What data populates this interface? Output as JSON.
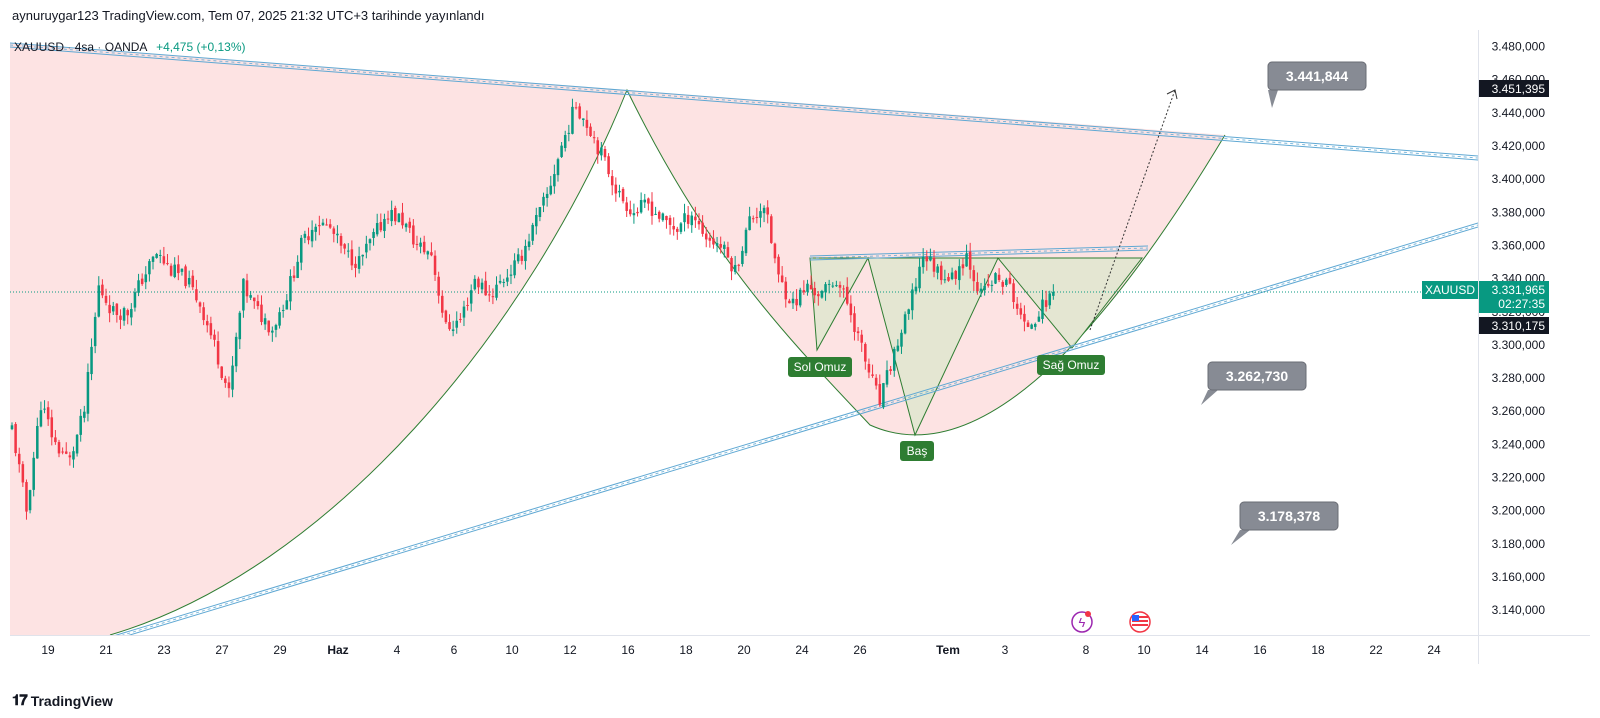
{
  "header": {
    "published": "aynuruygar123 TradingView.com, Tem 07, 2025 21:32 UTC+3 tarihinde yayınlandı"
  },
  "legend": {
    "symbol": "XAUUSD",
    "interval": "4sa",
    "broker": "OANDA",
    "change": "+4,475 (+0,13%)"
  },
  "footer": {
    "brand": "TradingView"
  },
  "colors": {
    "up": "#089981",
    "down": "#f23645",
    "trend": "#5fa8d3",
    "pattern": "#2e7d32",
    "cupFill": "#fde3e3",
    "hsFill": "#dfe6cf",
    "callout": "#878b94"
  },
  "chart_data": {
    "type": "candlestick",
    "symbol": "XAUUSD",
    "ylim": [
      3125,
      3490
    ],
    "y_ticks": [
      "3.480,000",
      "3.460,000",
      "3.440,000",
      "3.420,000",
      "3.400,000",
      "3.380,000",
      "3.360,000",
      "3.340,000",
      "3.320,000",
      "3.300,000",
      "3.280,000",
      "3.260,000",
      "3.240,000",
      "3.220,000",
      "3.200,000",
      "3.180,000",
      "3.160,000",
      "3.140,000"
    ],
    "x_ticks": [
      "19",
      "21",
      "23",
      "27",
      "29",
      "Haz",
      "4",
      "6",
      "10",
      "12",
      "16",
      "18",
      "20",
      "24",
      "26",
      "Tem",
      "3",
      "8",
      "10",
      "14",
      "16",
      "18",
      "22",
      "24"
    ],
    "price_labels": {
      "current": {
        "label": "XAUUSD",
        "value": "3.331,965",
        "countdown": "02:27:35"
      },
      "high": "3.451,395",
      "low": "3.310,175"
    },
    "callouts": [
      "3.441,844",
      "3.262,730",
      "3.178,378"
    ],
    "annotations": [
      "Sol Omuz",
      "Baş",
      "Sağ Omuz"
    ],
    "anchors": [
      [
        0,
        3250
      ],
      [
        4,
        3200
      ],
      [
        8,
        3265
      ],
      [
        12,
        3240
      ],
      [
        16,
        3230
      ],
      [
        20,
        3260
      ],
      [
        24,
        3335
      ],
      [
        28,
        3320
      ],
      [
        32,
        3320
      ],
      [
        36,
        3340
      ],
      [
        40,
        3355
      ],
      [
        44,
        3345
      ],
      [
        48,
        3340
      ],
      [
        52,
        3325
      ],
      [
        56,
        3300
      ],
      [
        60,
        3270
      ],
      [
        64,
        3335
      ],
      [
        68,
        3320
      ],
      [
        72,
        3310
      ],
      [
        76,
        3330
      ],
      [
        80,
        3360
      ],
      [
        84,
        3375
      ],
      [
        88,
        3370
      ],
      [
        92,
        3355
      ],
      [
        96,
        3350
      ],
      [
        100,
        3365
      ],
      [
        104,
        3380
      ],
      [
        108,
        3375
      ],
      [
        112,
        3360
      ],
      [
        116,
        3355
      ],
      [
        120,
        3310
      ],
      [
        124,
        3315
      ],
      [
        128,
        3340
      ],
      [
        132,
        3330
      ],
      [
        136,
        3340
      ],
      [
        140,
        3350
      ],
      [
        144,
        3370
      ],
      [
        148,
        3390
      ],
      [
        152,
        3420
      ],
      [
        156,
        3445
      ],
      [
        160,
        3430
      ],
      [
        164,
        3410
      ],
      [
        168,
        3390
      ],
      [
        172,
        3380
      ],
      [
        176,
        3385
      ],
      [
        180,
        3375
      ],
      [
        184,
        3370
      ],
      [
        188,
        3380
      ],
      [
        192,
        3365
      ],
      [
        196,
        3360
      ],
      [
        200,
        3345
      ],
      [
        204,
        3375
      ],
      [
        208,
        3385
      ],
      [
        212,
        3340
      ],
      [
        216,
        3325
      ],
      [
        220,
        3335
      ],
      [
        224,
        3330
      ],
      [
        228,
        3340
      ],
      [
        232,
        3320
      ],
      [
        236,
        3290
      ],
      [
        240,
        3265
      ],
      [
        244,
        3295
      ],
      [
        248,
        3320
      ],
      [
        252,
        3355
      ],
      [
        256,
        3345
      ],
      [
        260,
        3340
      ],
      [
        264,
        3355
      ],
      [
        268,
        3330
      ],
      [
        272,
        3340
      ],
      [
        276,
        3335
      ],
      [
        280,
        3310
      ],
      [
        284,
        3320
      ],
      [
        288,
        3332
      ]
    ]
  }
}
